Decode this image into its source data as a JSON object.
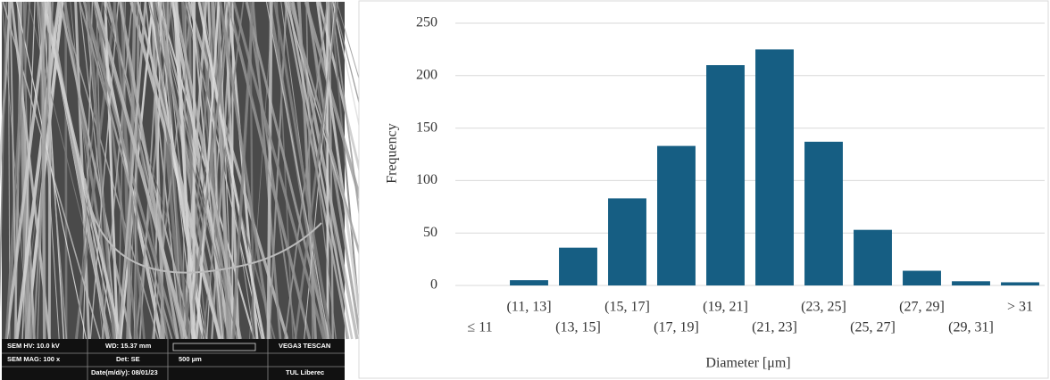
{
  "micrograph": {
    "labels": [
      "SEM HV: 10.0 kV",
      "WD: 15.37 mm",
      "VEGA3 TESCAN",
      "SEM MAG: 100 x",
      "Det: SE",
      "500 μm",
      "Date(m/d/y): 08/01/23",
      "TUL Liberec"
    ]
  },
  "chart_data": {
    "type": "bar",
    "categories": [
      "≤ 11",
      "(11, 13]",
      "(13, 15]",
      "(15, 17]",
      "(17, 19]",
      "(19, 21]",
      "(21, 23]",
      "(23, 25]",
      "(25, 27]",
      "(27, 29]",
      "(29, 31]",
      "> 31"
    ],
    "values": [
      0,
      5,
      36,
      83,
      133,
      210,
      225,
      137,
      53,
      14,
      4,
      3
    ],
    "color": "#165e83",
    "x_label": "Diameter [μm]",
    "y_label": "Frequency",
    "ylim": [
      0,
      250
    ],
    "yticks": [
      0,
      50,
      100,
      150,
      200,
      250
    ],
    "grid": true
  }
}
